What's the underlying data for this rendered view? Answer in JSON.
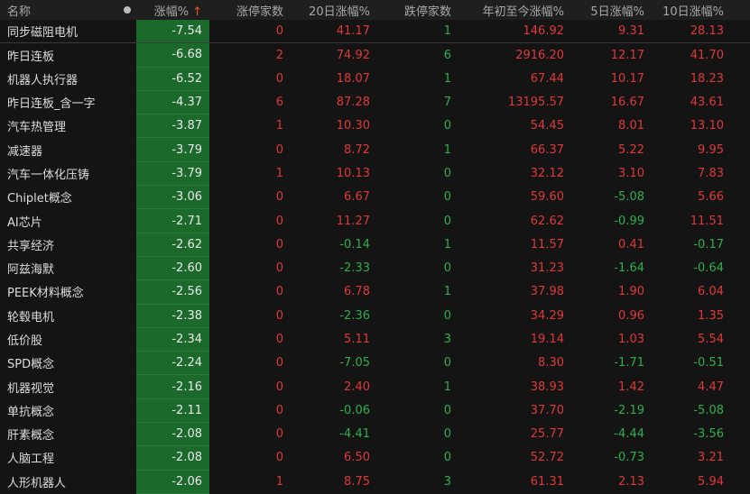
{
  "header": {
    "name": "名称",
    "change": "涨幅%",
    "sort_icon": "arrow-up-icon",
    "limit_up": "涨停家数",
    "d20": "20日涨幅%",
    "limit_down": "跌停家数",
    "ytd": "年初至今涨幅%",
    "d5": "5日涨幅%",
    "d10": "10日涨幅%"
  },
  "colors": {
    "up": "#e03838",
    "down": "#2fae4b",
    "highlight_bg": "#1b6a2c"
  },
  "rows": [
    {
      "name": "同步磁阻电机",
      "change": "-7.54",
      "limit_up": "0",
      "d20": "41.17",
      "limit_down": "1",
      "ytd": "146.92",
      "d5": "9.31",
      "d10": "28.13"
    },
    {
      "name": "昨日连板",
      "change": "-6.68",
      "limit_up": "2",
      "d20": "74.92",
      "limit_down": "6",
      "ytd": "2916.20",
      "d5": "12.17",
      "d10": "41.70"
    },
    {
      "name": "机器人执行器",
      "change": "-6.52",
      "limit_up": "0",
      "d20": "18.07",
      "limit_down": "1",
      "ytd": "67.44",
      "d5": "10.17",
      "d10": "18.23"
    },
    {
      "name": "昨日连板_含一字",
      "change": "-4.37",
      "limit_up": "6",
      "d20": "87.28",
      "limit_down": "7",
      "ytd": "13195.57",
      "d5": "16.67",
      "d10": "43.61"
    },
    {
      "name": "汽车热管理",
      "change": "-3.87",
      "limit_up": "1",
      "d20": "10.30",
      "limit_down": "0",
      "ytd": "54.45",
      "d5": "8.01",
      "d10": "13.10"
    },
    {
      "name": "减速器",
      "change": "-3.79",
      "limit_up": "0",
      "d20": "8.72",
      "limit_down": "1",
      "ytd": "66.37",
      "d5": "5.22",
      "d10": "9.95"
    },
    {
      "name": "汽车一体化压铸",
      "change": "-3.79",
      "limit_up": "1",
      "d20": "10.13",
      "limit_down": "0",
      "ytd": "32.12",
      "d5": "3.10",
      "d10": "7.83"
    },
    {
      "name": "Chiplet概念",
      "change": "-3.06",
      "limit_up": "0",
      "d20": "6.67",
      "limit_down": "0",
      "ytd": "59.60",
      "d5": "-5.08",
      "d10": "5.66"
    },
    {
      "name": "AI芯片",
      "change": "-2.71",
      "limit_up": "0",
      "d20": "11.27",
      "limit_down": "0",
      "ytd": "62.62",
      "d5": "-0.99",
      "d10": "11.51"
    },
    {
      "name": "共享经济",
      "change": "-2.62",
      "limit_up": "0",
      "d20": "-0.14",
      "limit_down": "1",
      "ytd": "11.57",
      "d5": "0.41",
      "d10": "-0.17"
    },
    {
      "name": "阿兹海默",
      "change": "-2.60",
      "limit_up": "0",
      "d20": "-2.33",
      "limit_down": "0",
      "ytd": "31.23",
      "d5": "-1.64",
      "d10": "-0.64"
    },
    {
      "name": "PEEK材料概念",
      "change": "-2.56",
      "limit_up": "0",
      "d20": "6.78",
      "limit_down": "1",
      "ytd": "37.98",
      "d5": "1.90",
      "d10": "6.04"
    },
    {
      "name": "轮毂电机",
      "change": "-2.38",
      "limit_up": "0",
      "d20": "-2.36",
      "limit_down": "0",
      "ytd": "34.29",
      "d5": "0.96",
      "d10": "1.35"
    },
    {
      "name": "低价股",
      "change": "-2.34",
      "limit_up": "0",
      "d20": "5.11",
      "limit_down": "3",
      "ytd": "19.14",
      "d5": "1.03",
      "d10": "5.54"
    },
    {
      "name": "SPD概念",
      "change": "-2.24",
      "limit_up": "0",
      "d20": "-7.05",
      "limit_down": "0",
      "ytd": "8.30",
      "d5": "-1.71",
      "d10": "-0.51"
    },
    {
      "name": "机器视觉",
      "change": "-2.16",
      "limit_up": "0",
      "d20": "2.40",
      "limit_down": "1",
      "ytd": "38.93",
      "d5": "1.42",
      "d10": "4.47"
    },
    {
      "name": "单抗概念",
      "change": "-2.11",
      "limit_up": "0",
      "d20": "-0.06",
      "limit_down": "0",
      "ytd": "37.70",
      "d5": "-2.19",
      "d10": "-5.08"
    },
    {
      "name": "肝素概念",
      "change": "-2.08",
      "limit_up": "0",
      "d20": "-4.41",
      "limit_down": "0",
      "ytd": "25.77",
      "d5": "-4.44",
      "d10": "-3.56"
    },
    {
      "name": "人脑工程",
      "change": "-2.08",
      "limit_up": "0",
      "d20": "6.50",
      "limit_down": "0",
      "ytd": "52.72",
      "d5": "-0.73",
      "d10": "3.21"
    },
    {
      "name": "人形机器人",
      "change": "-2.06",
      "limit_up": "1",
      "d20": "8.75",
      "limit_down": "3",
      "ytd": "61.31",
      "d5": "2.13",
      "d10": "5.94"
    }
  ]
}
